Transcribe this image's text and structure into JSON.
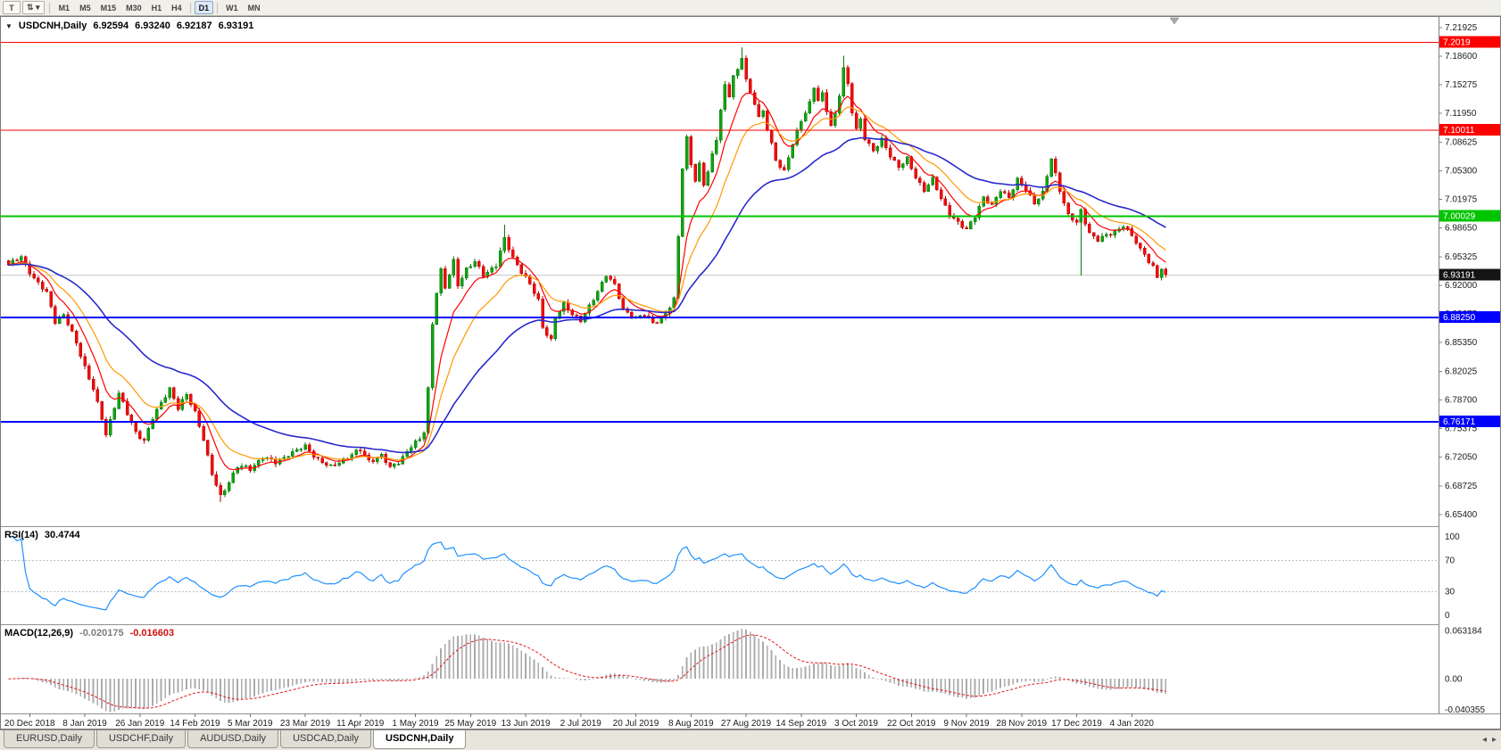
{
  "toolbar": {
    "tool_buttons": [
      {
        "name": "templates-tool",
        "label": "T",
        "caret": ""
      },
      {
        "name": "crosshair-tool",
        "label": "⇅",
        "caret": "▾"
      }
    ],
    "timeframes": [
      {
        "label": "M1",
        "group": 0,
        "active": false
      },
      {
        "label": "M5",
        "group": 0,
        "active": false
      },
      {
        "label": "M15",
        "group": 0,
        "active": false
      },
      {
        "label": "M30",
        "group": 0,
        "active": false
      },
      {
        "label": "H1",
        "group": 0,
        "active": false
      },
      {
        "label": "H4",
        "group": 0,
        "active": false
      },
      {
        "label": "D1",
        "group": 1,
        "active": true
      },
      {
        "label": "W1",
        "group": 2,
        "active": false
      },
      {
        "label": "MN",
        "group": 2,
        "active": false
      }
    ]
  },
  "chart": {
    "header": {
      "collapse_icon": "▼",
      "symbol": "USDCNH,Daily",
      "open": "6.92594",
      "high": "6.93240",
      "low": "6.92187",
      "close": "6.93191"
    }
  },
  "rsi": {
    "label": "RSI(14)",
    "value": "30.4744"
  },
  "macd": {
    "label": "MACD(12,26,9)",
    "value": "-0.020175",
    "signal_value": "-0.016603"
  },
  "tabs": {
    "items": [
      {
        "label": "EURUSD,Daily",
        "active": false
      },
      {
        "label": "USDCHF,Daily",
        "active": false
      },
      {
        "label": "AUDUSD,Daily",
        "active": false
      },
      {
        "label": "USDCAD,Daily",
        "active": false
      },
      {
        "label": "USDCNH,Daily",
        "active": true
      }
    ],
    "scroll_left_icon": "◂",
    "scroll_right_icon": "▸"
  },
  "chart_data": {
    "type": "candlestick+indicators",
    "symbol": "USDCNH",
    "timeframe": "Daily",
    "ohlc_current": {
      "open": 6.92594,
      "high": 6.9324,
      "low": 6.92187,
      "close": 6.93191
    },
    "y_axis": {
      "ticks": [
        "7.21925",
        "7.18600",
        "7.15275",
        "7.11950",
        "7.08625",
        "7.05300",
        "7.01975",
        "6.98650",
        "6.95325",
        "6.92000",
        "6.88675",
        "6.85350",
        "6.82025",
        "6.78700",
        "6.75375",
        "6.72050",
        "6.68725",
        "6.65400"
      ]
    },
    "x_axis": {
      "dates": [
        "20 Dec 2018",
        "8 Jan 2019",
        "26 Jan 2019",
        "14 Feb 2019",
        "5 Mar 2019",
        "23 Mar 2019",
        "11 Apr 2019",
        "1 May 2019",
        "25 May 2019",
        "13 Jun 2019",
        "2 Jul 2019",
        "20 Jul 2019",
        "8 Aug 2019",
        "27 Aug 2019",
        "14 Sep 2019",
        "3 Oct 2019",
        "22 Oct 2019",
        "9 Nov 2019",
        "28 Nov 2019",
        "17 Dec 2019",
        "4 Jan 2020"
      ],
      "first_slot": 5,
      "step": 13
    },
    "candle_count": 274,
    "noise": 0.004,
    "last_close": 6.93191,
    "close_anchors": [
      [
        0,
        6.943
      ],
      [
        3,
        6.952
      ],
      [
        6,
        6.928
      ],
      [
        9,
        6.91
      ],
      [
        11,
        6.878
      ],
      [
        13,
        6.886
      ],
      [
        16,
        6.852
      ],
      [
        18,
        6.825
      ],
      [
        20,
        6.8
      ],
      [
        23,
        6.746
      ],
      [
        26,
        6.796
      ],
      [
        28,
        6.77
      ],
      [
        30,
        6.748
      ],
      [
        32,
        6.74
      ],
      [
        34,
        6.766
      ],
      [
        36,
        6.782
      ],
      [
        38,
        6.8
      ],
      [
        40,
        6.778
      ],
      [
        42,
        6.792
      ],
      [
        44,
        6.772
      ],
      [
        46,
        6.742
      ],
      [
        48,
        6.7
      ],
      [
        50,
        6.674
      ],
      [
        52,
        6.692
      ],
      [
        54,
        6.71
      ],
      [
        57,
        6.706
      ],
      [
        60,
        6.721
      ],
      [
        63,
        6.713
      ],
      [
        66,
        6.724
      ],
      [
        70,
        6.732
      ],
      [
        73,
        6.718
      ],
      [
        76,
        6.708
      ],
      [
        80,
        6.721
      ],
      [
        83,
        6.728
      ],
      [
        85,
        6.716
      ],
      [
        88,
        6.722
      ],
      [
        90,
        6.707
      ],
      [
        92,
        6.715
      ],
      [
        95,
        6.733
      ],
      [
        97,
        6.74
      ],
      [
        98,
        6.75
      ],
      [
        99,
        6.8
      ],
      [
        100,
        6.876
      ],
      [
        101,
        6.912
      ],
      [
        102,
        6.936
      ],
      [
        103,
        6.916
      ],
      [
        105,
        6.948
      ],
      [
        106,
        6.921
      ],
      [
        108,
        6.938
      ],
      [
        110,
        6.946
      ],
      [
        112,
        6.932
      ],
      [
        115,
        6.943
      ],
      [
        117,
        6.973
      ],
      [
        119,
        6.952
      ],
      [
        121,
        6.936
      ],
      [
        123,
        6.92
      ],
      [
        125,
        6.902
      ],
      [
        126,
        6.872
      ],
      [
        128,
        6.856
      ],
      [
        129,
        6.881
      ],
      [
        131,
        6.897
      ],
      [
        133,
        6.887
      ],
      [
        135,
        6.879
      ],
      [
        137,
        6.894
      ],
      [
        139,
        6.913
      ],
      [
        141,
        6.933
      ],
      [
        143,
        6.919
      ],
      [
        145,
        6.891
      ],
      [
        148,
        6.882
      ],
      [
        150,
        6.885
      ],
      [
        152,
        6.876
      ],
      [
        154,
        6.881
      ],
      [
        156,
        6.894
      ],
      [
        157,
        6.902
      ],
      [
        158,
        6.976
      ],
      [
        159,
        7.056
      ],
      [
        160,
        7.091
      ],
      [
        161,
        7.062
      ],
      [
        162,
        7.041
      ],
      [
        163,
        7.059
      ],
      [
        164,
        7.036
      ],
      [
        165,
        7.051
      ],
      [
        166,
        7.071
      ],
      [
        167,
        7.091
      ],
      [
        168,
        7.124
      ],
      [
        169,
        7.151
      ],
      [
        170,
        7.139
      ],
      [
        171,
        7.161
      ],
      [
        172,
        7.169
      ],
      [
        173,
        7.186
      ],
      [
        174,
        7.159
      ],
      [
        175,
        7.143
      ],
      [
        176,
        7.131
      ],
      [
        177,
        7.113
      ],
      [
        178,
        7.121
      ],
      [
        179,
        7.101
      ],
      [
        180,
        7.084
      ],
      [
        181,
        7.066
      ],
      [
        183,
        7.051
      ],
      [
        185,
        7.083
      ],
      [
        187,
        7.112
      ],
      [
        189,
        7.131
      ],
      [
        190,
        7.149
      ],
      [
        191,
        7.133
      ],
      [
        192,
        7.141
      ],
      [
        193,
        7.123
      ],
      [
        194,
        7.106
      ],
      [
        195,
        7.119
      ],
      [
        196,
        7.141
      ],
      [
        197,
        7.171
      ],
      [
        198,
        7.151
      ],
      [
        199,
        7.121
      ],
      [
        200,
        7.101
      ],
      [
        201,
        7.113
      ],
      [
        202,
        7.091
      ],
      [
        204,
        7.074
      ],
      [
        206,
        7.089
      ],
      [
        208,
        7.071
      ],
      [
        210,
        7.056
      ],
      [
        212,
        7.066
      ],
      [
        214,
        7.046
      ],
      [
        216,
        7.03
      ],
      [
        218,
        7.042
      ],
      [
        220,
        7.021
      ],
      [
        222,
        7.003
      ],
      [
        224,
        6.991
      ],
      [
        226,
        6.984
      ],
      [
        228,
        7.001
      ],
      [
        230,
        7.021
      ],
      [
        232,
        7.011
      ],
      [
        234,
        7.031
      ],
      [
        236,
        7.022
      ],
      [
        238,
        7.041
      ],
      [
        240,
        7.031
      ],
      [
        242,
        7.016
      ],
      [
        244,
        7.026
      ],
      [
        246,
        7.066
      ],
      [
        248,
        7.031
      ],
      [
        250,
        7.001
      ],
      [
        252,
        6.991
      ],
      [
        253,
        7.006
      ],
      [
        255,
        6.981
      ],
      [
        257,
        6.972
      ],
      [
        259,
        6.977
      ],
      [
        261,
        6.982
      ],
      [
        263,
        6.99
      ],
      [
        265,
        6.976
      ],
      [
        266,
        6.969
      ],
      [
        267,
        6.961
      ],
      [
        268,
        6.957
      ],
      [
        269,
        6.948
      ],
      [
        270,
        6.941
      ],
      [
        271,
        6.929
      ],
      [
        272,
        6.938
      ],
      [
        273,
        6.932
      ]
    ],
    "special_wicks": [
      {
        "slot": 50,
        "low": 6.668
      },
      {
        "slot": 117,
        "high": 6.99
      },
      {
        "slot": 173,
        "high": 7.196
      },
      {
        "slot": 197,
        "high": 7.186
      },
      {
        "slot": 253,
        "low": 6.931
      }
    ],
    "colors": {
      "up": {
        "fill": "#12a312",
        "border": "#0b7a0b"
      },
      "down": {
        "fill": "#f20c0c",
        "border": "#b80000"
      }
    },
    "horizontal_lines": [
      {
        "price": 7.2019,
        "label": "7.2019",
        "color": "#ff0000",
        "width": 1
      },
      {
        "price": 7.10011,
        "label": "7.10011",
        "color": "#ff0000",
        "width": 1
      },
      {
        "price": 7.00029,
        "label": "7.00029",
        "color": "#00c400",
        "width": 2
      },
      {
        "price": 6.8825,
        "label": "6.88250",
        "color": "#0000ff",
        "width": 2
      },
      {
        "price": 6.76171,
        "label": "6.76171",
        "color": "#0000ff",
        "width": 2
      }
    ],
    "current_price": {
      "price": 6.93191,
      "label": "6.93191",
      "color": "#141414"
    },
    "moving_averages": [
      {
        "name": "ma-red-line",
        "period": 8,
        "color": "#ff0000",
        "width": 1.2
      },
      {
        "name": "ma-orange-line",
        "period": 16,
        "color": "#ff9900",
        "width": 1.2
      },
      {
        "name": "ma-blue-line",
        "period": 40,
        "color": "#2929cc",
        "width": 1.6
      }
    ],
    "rsi": {
      "period": 14,
      "current": 30.4744,
      "color": "#1e90ff",
      "levels": [
        70,
        30
      ],
      "scale_labels": [
        "100",
        "70",
        "30",
        "0"
      ]
    },
    "macd": {
      "fast": 12,
      "slow": 26,
      "signal": 9,
      "current": -0.020175,
      "signal_current": -0.016603,
      "histogram_color": "#ababab",
      "signal_color": "#e01818",
      "scale_top": "0.063184",
      "scale_zero": "0.00",
      "scale_bottom": "-0.040355"
    }
  }
}
